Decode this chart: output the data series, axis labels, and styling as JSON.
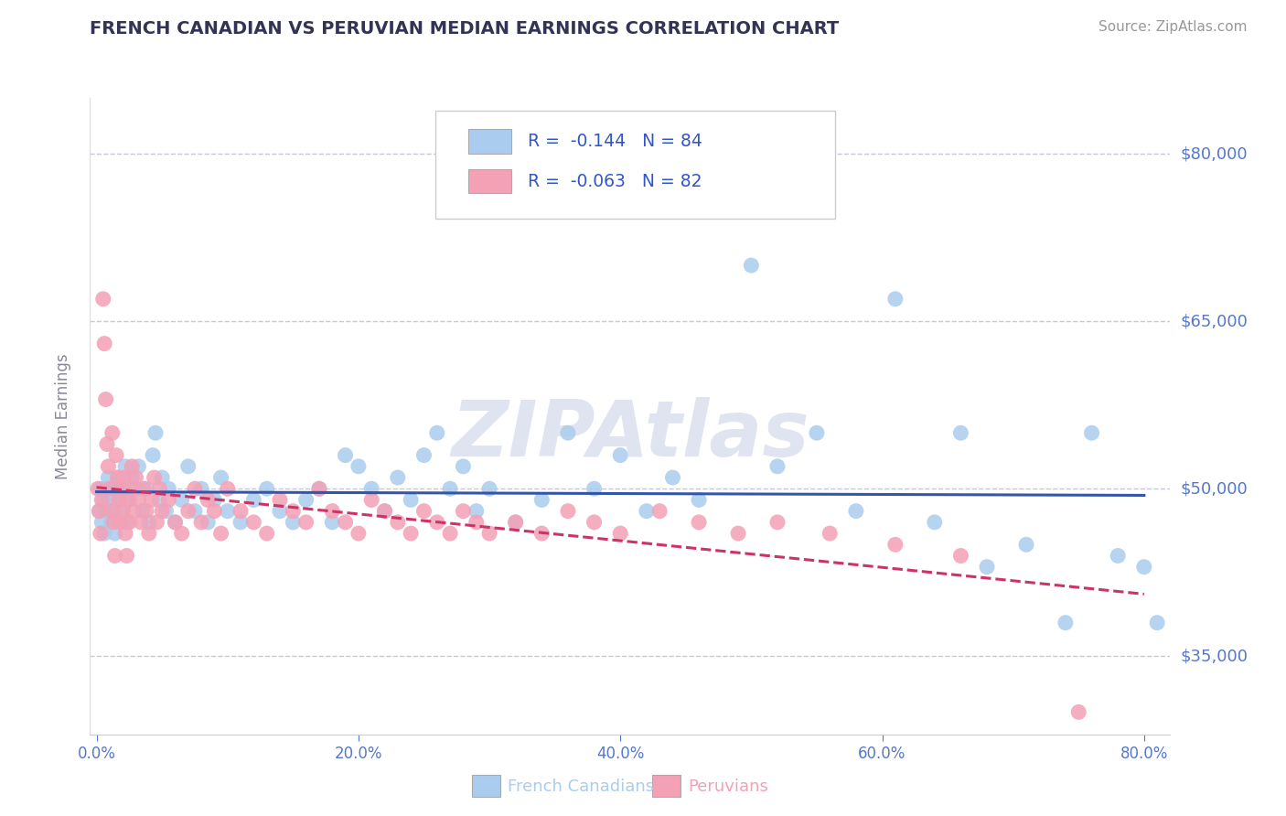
{
  "title": "FRENCH CANADIAN VS PERUVIAN MEDIAN EARNINGS CORRELATION CHART",
  "source": "Source: ZipAtlas.com",
  "ylabel": "Median Earnings",
  "xlim": [
    -0.005,
    0.82
  ],
  "ylim": [
    28000,
    85000
  ],
  "xtick_labels": [
    "0.0%",
    "20.0%",
    "40.0%",
    "60.0%",
    "80.0%"
  ],
  "xtick_vals": [
    0.0,
    0.2,
    0.4,
    0.6,
    0.8
  ],
  "ytick_labels": [
    "$35,000",
    "$50,000",
    "$65,000",
    "$80,000"
  ],
  "ytick_vals": [
    35000,
    50000,
    65000,
    80000
  ],
  "grid_color": "#c8c8d8",
  "background_color": "#ffffff",
  "title_color": "#333355",
  "axis_label_color": "#888899",
  "tick_label_color": "#5577cc",
  "source_color": "#999999",
  "watermark": "ZIPAtlas",
  "watermark_color": "#e0e4f0",
  "series": [
    {
      "name": "French Canadians",
      "R": -0.144,
      "N": 84,
      "color": "#aaccee",
      "trend_color": "#3355aa",
      "trend_style": "solid",
      "x": [
        0.002,
        0.003,
        0.004,
        0.005,
        0.006,
        0.007,
        0.008,
        0.009,
        0.01,
        0.011,
        0.012,
        0.013,
        0.014,
        0.015,
        0.016,
        0.017,
        0.02,
        0.021,
        0.022,
        0.023,
        0.025,
        0.027,
        0.03,
        0.032,
        0.035,
        0.038,
        0.04,
        0.043,
        0.045,
        0.048,
        0.05,
        0.053,
        0.055,
        0.06,
        0.065,
        0.07,
        0.075,
        0.08,
        0.085,
        0.09,
        0.095,
        0.1,
        0.11,
        0.12,
        0.13,
        0.14,
        0.15,
        0.16,
        0.17,
        0.18,
        0.19,
        0.2,
        0.21,
        0.22,
        0.23,
        0.24,
        0.25,
        0.26,
        0.27,
        0.28,
        0.29,
        0.3,
        0.32,
        0.34,
        0.36,
        0.38,
        0.4,
        0.42,
        0.44,
        0.46,
        0.5,
        0.52,
        0.55,
        0.58,
        0.61,
        0.64,
        0.66,
        0.68,
        0.71,
        0.74,
        0.76,
        0.78,
        0.8,
        0.81
      ],
      "y": [
        48000,
        50000,
        47000,
        49000,
        46000,
        50000,
        48000,
        51000,
        49000,
        47000,
        50000,
        48000,
        46000,
        49000,
        51000,
        50000,
        48000,
        50000,
        52000,
        47000,
        49000,
        51000,
        50000,
        52000,
        48000,
        50000,
        47000,
        53000,
        55000,
        49000,
        51000,
        48000,
        50000,
        47000,
        49000,
        52000,
        48000,
        50000,
        47000,
        49000,
        51000,
        48000,
        47000,
        49000,
        50000,
        48000,
        47000,
        49000,
        50000,
        47000,
        53000,
        52000,
        50000,
        48000,
        51000,
        49000,
        53000,
        55000,
        50000,
        52000,
        48000,
        50000,
        47000,
        49000,
        55000,
        50000,
        53000,
        48000,
        51000,
        49000,
        70000,
        52000,
        55000,
        48000,
        67000,
        47000,
        55000,
        43000,
        45000,
        38000,
        55000,
        44000,
        43000,
        38000
      ]
    },
    {
      "name": "Peruvians",
      "R": -0.063,
      "N": 82,
      "color": "#f4a0b5",
      "trend_color": "#cc3366",
      "trend_style": "dashed",
      "x": [
        0.001,
        0.002,
        0.003,
        0.004,
        0.005,
        0.006,
        0.007,
        0.008,
        0.009,
        0.01,
        0.011,
        0.012,
        0.013,
        0.014,
        0.015,
        0.016,
        0.017,
        0.018,
        0.019,
        0.02,
        0.021,
        0.022,
        0.023,
        0.024,
        0.025,
        0.026,
        0.027,
        0.028,
        0.03,
        0.032,
        0.034,
        0.036,
        0.038,
        0.04,
        0.042,
        0.044,
        0.046,
        0.048,
        0.05,
        0.055,
        0.06,
        0.065,
        0.07,
        0.075,
        0.08,
        0.085,
        0.09,
        0.095,
        0.1,
        0.11,
        0.12,
        0.13,
        0.14,
        0.15,
        0.16,
        0.17,
        0.18,
        0.19,
        0.2,
        0.21,
        0.22,
        0.23,
        0.24,
        0.25,
        0.26,
        0.27,
        0.28,
        0.29,
        0.3,
        0.32,
        0.34,
        0.36,
        0.38,
        0.4,
        0.43,
        0.46,
        0.49,
        0.52,
        0.56,
        0.61,
        0.66,
        0.75
      ],
      "y": [
        50000,
        48000,
        46000,
        49000,
        67000,
        63000,
        58000,
        54000,
        52000,
        50000,
        48000,
        55000,
        47000,
        44000,
        53000,
        51000,
        49000,
        47000,
        50000,
        48000,
        51000,
        46000,
        44000,
        49000,
        47000,
        50000,
        52000,
        48000,
        51000,
        49000,
        47000,
        50000,
        48000,
        46000,
        49000,
        51000,
        47000,
        50000,
        48000,
        49000,
        47000,
        46000,
        48000,
        50000,
        47000,
        49000,
        48000,
        46000,
        50000,
        48000,
        47000,
        46000,
        49000,
        48000,
        47000,
        50000,
        48000,
        47000,
        46000,
        49000,
        48000,
        47000,
        46000,
        48000,
        47000,
        46000,
        48000,
        47000,
        46000,
        47000,
        46000,
        48000,
        47000,
        46000,
        48000,
        47000,
        46000,
        47000,
        46000,
        45000,
        44000,
        30000
      ]
    }
  ],
  "bottom_legend": [
    {
      "name": "French Canadians",
      "color": "#aaccee"
    },
    {
      "name": "Peruvians",
      "color": "#f4a0b5"
    }
  ]
}
